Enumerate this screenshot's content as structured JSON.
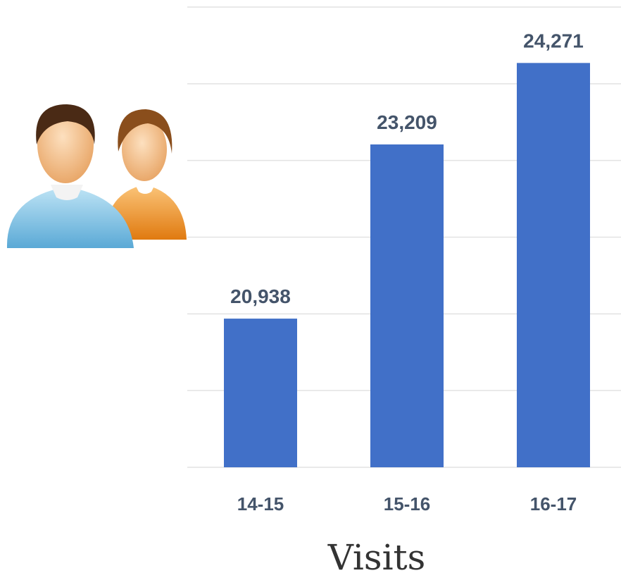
{
  "chart_data": {
    "type": "bar",
    "title": "Visits",
    "categories": [
      "14-15",
      "15-16",
      "16-17"
    ],
    "values": [
      20938,
      23209,
      24271
    ],
    "value_labels": [
      "20,938",
      "23,209",
      "24,271"
    ],
    "color": "#4170c8",
    "ylim": [
      19000,
      25000
    ],
    "yticks": [
      19000,
      20000,
      21000,
      22000,
      23000,
      24000,
      25000
    ],
    "grid": true
  }
}
